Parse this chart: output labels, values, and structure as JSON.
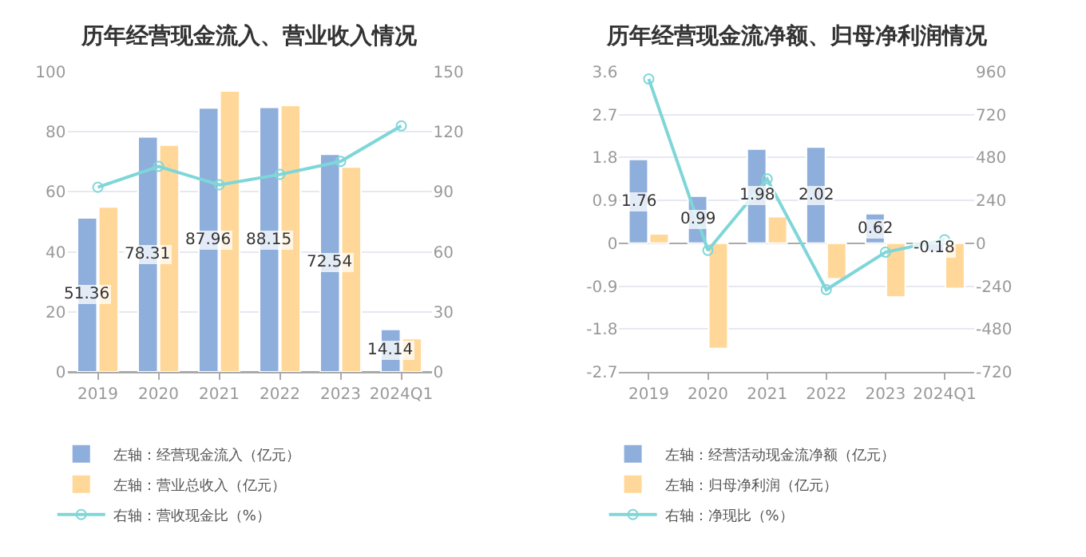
{
  "chart_data": [
    {
      "type": "bar",
      "title": "历年经营现金流入、营业收入情况",
      "categories": [
        "2019",
        "2020",
        "2021",
        "2022",
        "2023",
        "2024Q1"
      ],
      "ylim": [
        0,
        100
      ],
      "yticks": [
        0,
        20,
        40,
        60,
        80,
        100
      ],
      "y2lim": [
        0,
        150
      ],
      "y2ticks": [
        0,
        30,
        60,
        90,
        120,
        150
      ],
      "grid": "y",
      "legend": "bottom",
      "marker": "circle",
      "series": [
        {
          "name": "左轴：经营现金流入（亿元）",
          "color": "#8eaedb",
          "values": [
            51.36,
            78.31,
            87.96,
            88.15,
            72.54,
            14.14
          ],
          "value_labels": [
            "51.36",
            "78.31",
            "87.96",
            "88.15",
            "72.54",
            "14.14"
          ]
        },
        {
          "name": "左轴：营业总收入（亿元）",
          "color": "#ffd899",
          "values": [
            55.0,
            75.6,
            93.6,
            88.8,
            68.3,
            11.1
          ]
        },
        {
          "name": "右轴：营收现金比（%）",
          "type": "line",
          "axis": "y2",
          "color": "#7fd6d8",
          "values": [
            92.3,
            102.7,
            93.5,
            98.7,
            105.2,
            123.0
          ]
        }
      ]
    },
    {
      "type": "bar",
      "title": "历年经营现金流净额、归母净利润情况",
      "categories": [
        "2019",
        "2020",
        "2021",
        "2022",
        "2023",
        "2024Q1"
      ],
      "ylim": [
        -2.7,
        3.6
      ],
      "yticks": [
        -2.7,
        -1.8,
        -0.9,
        0,
        0.9,
        1.8,
        2.7,
        3.6
      ],
      "y2lim": [
        -720,
        960
      ],
      "y2ticks": [
        -720,
        -480,
        -240,
        0,
        240,
        480,
        720,
        960
      ],
      "grid": "y",
      "legend": "bottom",
      "marker": "circle",
      "series": [
        {
          "name": "左轴：经营活动现金流净额（亿元）",
          "color": "#8eaedb",
          "values": [
            1.76,
            0.99,
            1.98,
            2.02,
            0.62,
            -0.18
          ],
          "value_labels": [
            "1.76",
            "0.99",
            "1.98",
            "2.02",
            "0.62",
            "-0.18"
          ]
        },
        {
          "name": "左轴：归母净利润（亿元）",
          "color": "#ffd899",
          "values": [
            0.2,
            -2.21,
            0.56,
            -0.75,
            -1.13,
            -0.95
          ]
        },
        {
          "name": "右轴：净现比（%）",
          "type": "line",
          "axis": "y2",
          "color": "#7fd6d8",
          "values": [
            920,
            -40,
            360,
            -260,
            -50,
            20
          ]
        }
      ]
    }
  ]
}
